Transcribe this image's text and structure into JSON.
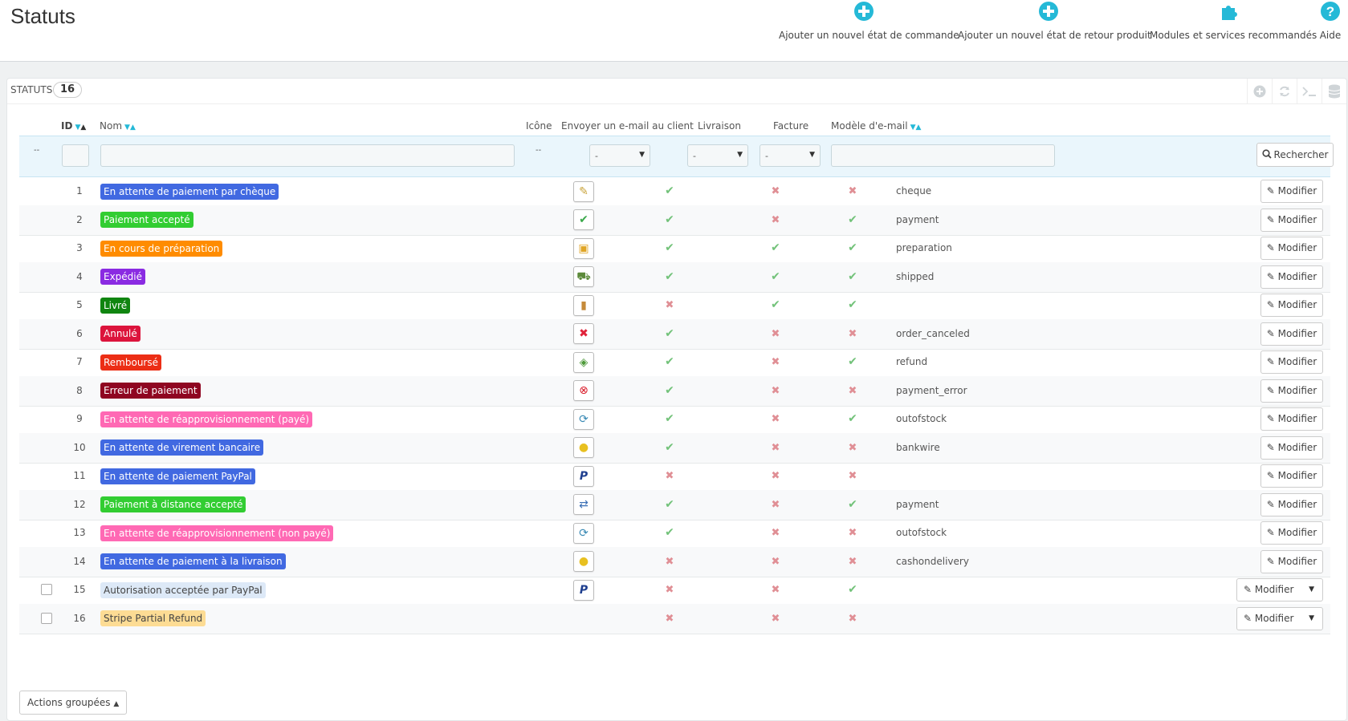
{
  "page": {
    "title": "Statuts"
  },
  "toolbar": {
    "add_order_state": "Ajouter un nouvel état de commande",
    "add_return_state": "Ajouter un nouvel état de retour produit",
    "modules": "Modules et services recommandés",
    "help": "Aide",
    "accent_color": "#25b9d7"
  },
  "panel": {
    "title": "Statuts",
    "count": "16"
  },
  "columns": {
    "id": "ID",
    "name": "Nom",
    "icon": "Icône",
    "send_email": "Envoyer un e-mail au client",
    "delivery": "Livraison",
    "invoice": "Facture",
    "email_template": "Modèle d'e-mail"
  },
  "filters": {
    "checkbox_dash": "--",
    "icon_dash": "--",
    "send_email_value": "-",
    "delivery_value": "-",
    "invoice_value": "-",
    "search_label": "Rechercher"
  },
  "rows": [
    {
      "id": "1",
      "name": "En attente de paiement par chèque",
      "color": "#4169e1",
      "text_color": "#fff",
      "icon": "cheque-icon",
      "email": true,
      "delivery": false,
      "invoice": false,
      "template": "cheque",
      "edit": "Modifier"
    },
    {
      "id": "2",
      "name": "Paiement accepté",
      "color": "#32cd32",
      "text_color": "#fff",
      "icon": "check-icon",
      "email": true,
      "delivery": false,
      "invoice": true,
      "template": "payment",
      "edit": "Modifier"
    },
    {
      "id": "3",
      "name": "En cours de préparation",
      "color": "#ff8c00",
      "text_color": "#fff",
      "icon": "box-icon",
      "email": true,
      "delivery": true,
      "invoice": true,
      "template": "preparation",
      "edit": "Modifier"
    },
    {
      "id": "4",
      "name": "Expédié",
      "color": "#8a2be2",
      "text_color": "#fff",
      "icon": "truck-icon",
      "email": true,
      "delivery": true,
      "invoice": true,
      "template": "shipped",
      "edit": "Modifier"
    },
    {
      "id": "5",
      "name": "Livré",
      "color": "#108510",
      "text_color": "#fff",
      "icon": "package-icon",
      "email": false,
      "delivery": true,
      "invoice": true,
      "template": "",
      "edit": "Modifier"
    },
    {
      "id": "6",
      "name": "Annulé",
      "color": "#dc143c",
      "text_color": "#fff",
      "icon": "cancel-icon",
      "email": true,
      "delivery": false,
      "invoice": false,
      "template": "order_canceled",
      "edit": "Modifier"
    },
    {
      "id": "7",
      "name": "Remboursé",
      "color": "#ec2e15",
      "text_color": "#fff",
      "icon": "money-icon",
      "email": true,
      "delivery": false,
      "invoice": true,
      "template": "refund",
      "edit": "Modifier"
    },
    {
      "id": "8",
      "name": "Erreur de paiement",
      "color": "#8f0621",
      "text_color": "#fff",
      "icon": "error-icon",
      "email": true,
      "delivery": false,
      "invoice": false,
      "template": "payment_error",
      "edit": "Modifier"
    },
    {
      "id": "9",
      "name": "En attente de réapprovisionnement (payé)",
      "color": "#ff69b4",
      "text_color": "#fff",
      "icon": "restock-icon",
      "email": true,
      "delivery": false,
      "invoice": true,
      "template": "outofstock",
      "edit": "Modifier"
    },
    {
      "id": "10",
      "name": "En attente de virement bancaire",
      "color": "#4169e1",
      "text_color": "#fff",
      "icon": "coins-icon",
      "email": true,
      "delivery": false,
      "invoice": false,
      "template": "bankwire",
      "edit": "Modifier"
    },
    {
      "id": "11",
      "name": "En attente de paiement PayPal",
      "color": "#4169e1",
      "text_color": "#fff",
      "icon": "paypal-icon",
      "email": false,
      "delivery": false,
      "invoice": false,
      "template": "",
      "edit": "Modifier"
    },
    {
      "id": "12",
      "name": "Paiement à distance accepté",
      "color": "#32cd32",
      "text_color": "#fff",
      "icon": "remote-payment-icon",
      "email": true,
      "delivery": false,
      "invoice": true,
      "template": "payment",
      "edit": "Modifier"
    },
    {
      "id": "13",
      "name": "En attente de réapprovisionnement (non payé)",
      "color": "#ff69b4",
      "text_color": "#fff",
      "icon": "restock-icon",
      "email": true,
      "delivery": false,
      "invoice": false,
      "template": "outofstock",
      "edit": "Modifier"
    },
    {
      "id": "14",
      "name": "En attente de paiement à la livraison",
      "color": "#4169e1",
      "text_color": "#fff",
      "icon": "coins-icon",
      "email": false,
      "delivery": false,
      "invoice": false,
      "template": "cashondelivery",
      "edit": "Modifier"
    },
    {
      "id": "15",
      "name": "Autorisation acceptée par PayPal",
      "color": "#dde9f7",
      "text_color": "#444",
      "icon": "paypal-icon",
      "email": false,
      "delivery": false,
      "invoice": true,
      "template": "",
      "edit": "Modifier",
      "selectable": true
    },
    {
      "id": "16",
      "name": "Stripe Partial Refund",
      "color": "#fddc94",
      "text_color": "#444",
      "icon": "",
      "email": false,
      "delivery": false,
      "invoice": false,
      "template": "",
      "edit": "Modifier",
      "selectable": true
    }
  ],
  "bulk_actions": "Actions groupées"
}
